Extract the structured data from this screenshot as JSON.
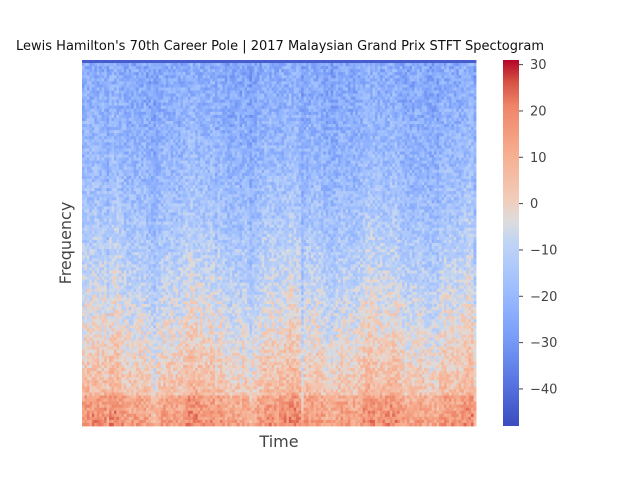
{
  "chart_data": {
    "type": "heatmap",
    "title": "Lewis Hamilton's 70th Career Pole | 2017 Malaysian Grand Prix STFT Spectogram",
    "xlabel": "Time",
    "ylabel": "Frequency",
    "x_ticks": [],
    "y_ticks": [],
    "colorbar": {
      "colormap": "coolwarm",
      "range": [
        -48,
        31
      ],
      "ticks": [
        30,
        20,
        10,
        0,
        -10,
        -20,
        -30,
        -40
      ],
      "tick_labels": [
        "30",
        "20",
        "10",
        "0",
        "−10",
        "−20",
        "−30",
        "−40"
      ]
    },
    "colors": {
      "cold": "#3b4cc0",
      "neutral": "#dddcdc",
      "warm": "#b40426"
    }
  }
}
